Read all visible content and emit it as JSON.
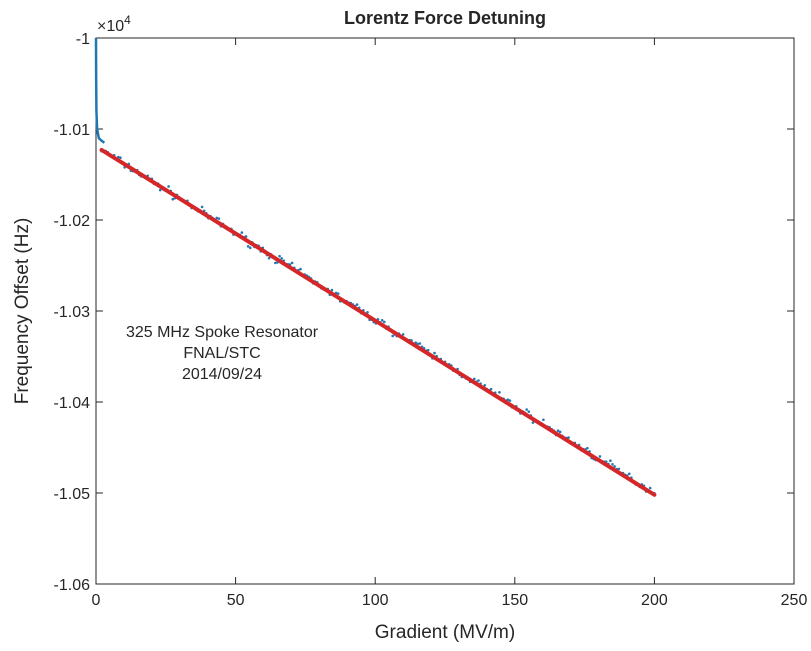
{
  "chart_data": {
    "type": "scatter",
    "title": "Lorentz Force Detuning",
    "xlabel": "Gradient (MV/m)",
    "ylabel": "Frequency Offset (Hz)",
    "y_multiplier_label": "×10",
    "y_multiplier_exponent": "4",
    "xlim": [
      0,
      250
    ],
    "ylim": [
      -10600,
      -10000
    ],
    "x_ticks": [
      0,
      50,
      100,
      150,
      200,
      250
    ],
    "x_tick_labels": [
      "0",
      "50",
      "100",
      "150",
      "200",
      "250"
    ],
    "y_ticks": [
      -10000,
      -10100,
      -10200,
      -10300,
      -10400,
      -10500,
      -10600
    ],
    "y_tick_labels": [
      "-1",
      "-1.01",
      "-1.02",
      "-1.03",
      "-1.04",
      "-1.05",
      "-1.06"
    ],
    "grid": false,
    "annotation": [
      "325 MHz Spoke Resonator",
      "FNAL/STC",
      "2014/09/24"
    ],
    "series": [
      {
        "role": "measured",
        "color": "#1f77b4",
        "x_range": [
          0,
          200
        ],
        "rise_points": [
          [
            0.0,
            -10000
          ],
          [
            0.05,
            -10040
          ],
          [
            0.15,
            -10080
          ],
          [
            0.4,
            -10100
          ],
          [
            1.0,
            -10110
          ],
          [
            2.0,
            -10113
          ],
          [
            3.0,
            -10115
          ]
        ],
        "linear_start": [
          2.0,
          -10123
        ],
        "linear_end": [
          200.0,
          -10500
        ],
        "noise_hz": 3
      },
      {
        "role": "linear fit",
        "color": "#d62728",
        "x": [
          2,
          200
        ],
        "y": [
          -10123,
          -10502
        ]
      }
    ]
  }
}
